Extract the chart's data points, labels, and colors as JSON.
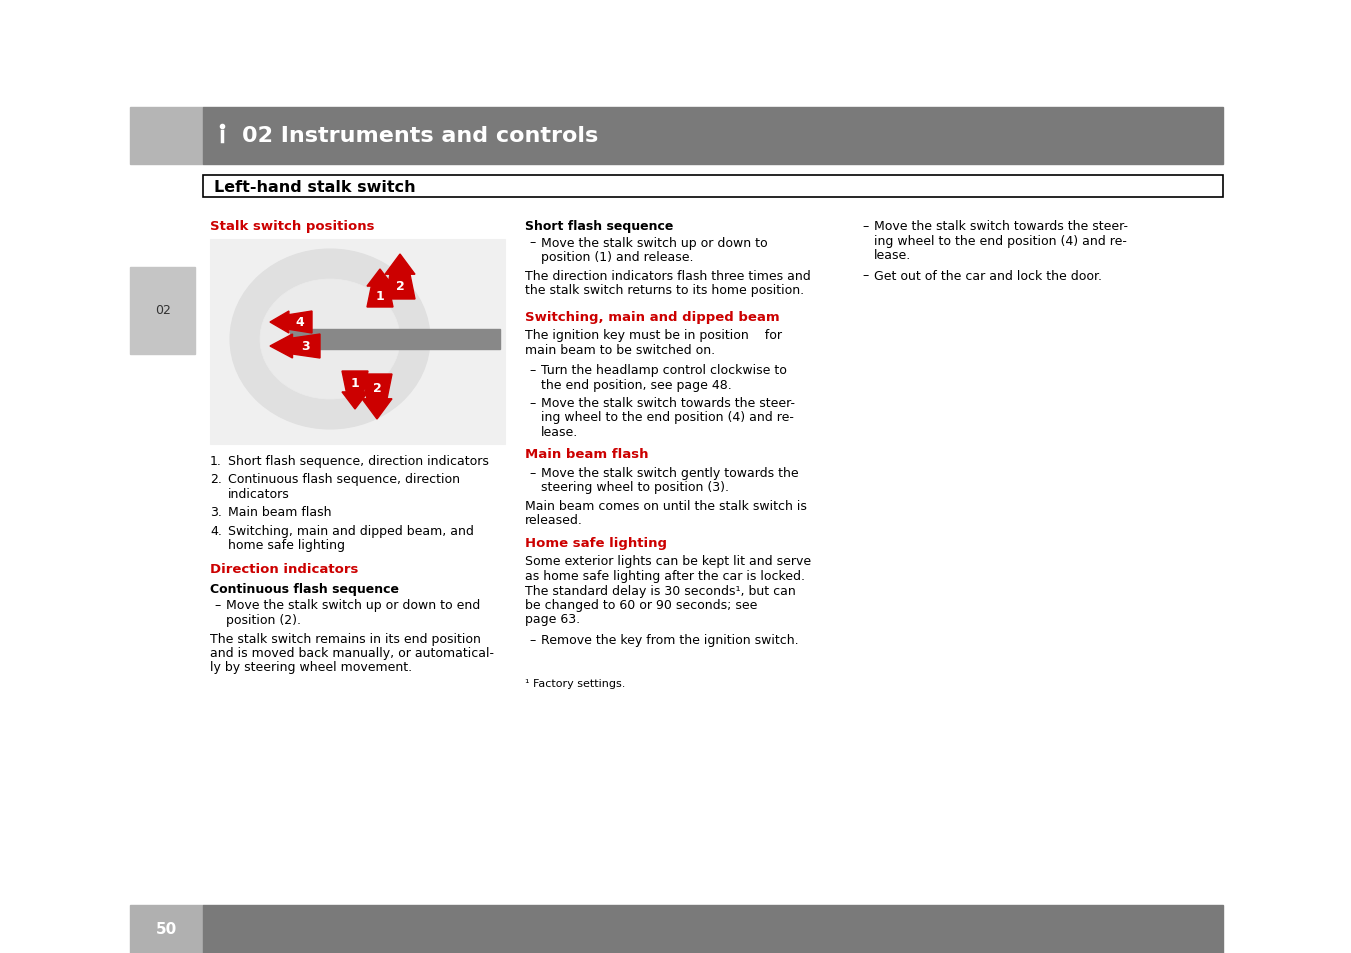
{
  "bg_color": "#ffffff",
  "header_left_color": "#b8b8b8",
  "header_right_color": "#7a7a7a",
  "header_text": "02 Instruments and controls",
  "red_color": "#cc0000",
  "tab_color": "#c0c0c0",
  "tab_text": "02",
  "footer_left_color": "#b0b0b0",
  "footer_right_color": "#7a7a7a",
  "footer_text": "50",
  "stalk_title": "Stalk switch positions",
  "list_items": [
    "Short flash sequence, direction indicators",
    "Continuous flash sequence, direction\nindicators",
    "Main beam flash",
    "Switching, main and dipped beam, and\nhome safe lighting"
  ],
  "dir_ind_title": "Direction indicators",
  "cont_flash_title": "Continuous flash sequence",
  "cont_flash_bullet": "Move the stalk switch up or down to end\nposition (2).",
  "cont_flash_body": "The stalk switch remains in its end position\nand is moved back manually, or automatical-\nly by steering wheel movement.",
  "col2_title1": "Short flash sequence",
  "col2_bullet1": "Move the stalk switch up or down to\nposition (1) and release.",
  "col2_body1": "The direction indicators flash three times and\nthe stalk switch returns to its home position.",
  "col2_title2": "Switching, main and dipped beam",
  "col2_intro2": "The ignition key must be in position    for\nmain beam to be switched on.",
  "col2_bullet2a": "Turn the headlamp control clockwise to\nthe end position, see page 48.",
  "col2_bullet2b": "Move the stalk switch towards the steer-\ning wheel to the end position (4) and re-\nlease.",
  "col2_title3": "Main beam flash",
  "col2_bullet3": "Move the stalk switch gently towards the\nsteering wheel to position (3).",
  "col2_body3": "Main beam comes on until the stalk switch is\nreleased.",
  "col2_title4": "Home safe lighting",
  "col2_body4a": "Some exterior lights can be kept lit and serve\nas home safe lighting after the car is locked.\nThe standard delay is 30 seconds¹, but can\nbe changed to 60 or 90 seconds; see\npage 63.",
  "col2_bullet4": "Remove the key from the ignition switch.",
  "col2_footnote": "¹ Factory settings.",
  "col3_bullet1a": "Move the stalk switch towards the steer-\ning wheel to the end position (4) and re-\nlease.",
  "col3_bullet1b": "Get out of the car and lock the door."
}
